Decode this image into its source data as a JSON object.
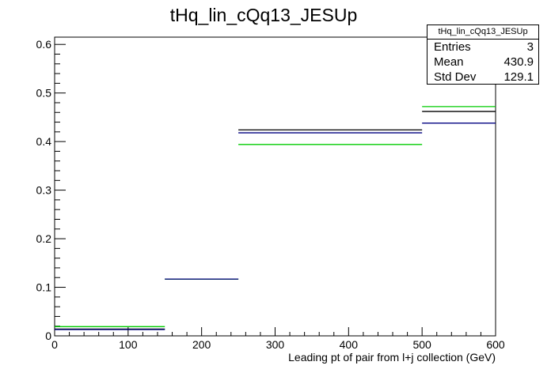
{
  "chart_data": {
    "type": "step",
    "title": "tHq_lin_cQq13_JESUp",
    "xlabel": "Leading pt of pair from l+j collection (GeV)",
    "ylabel": "",
    "xlim": [
      0,
      600
    ],
    "ylim": [
      0,
      0.615
    ],
    "x_ticks": [
      0,
      100,
      200,
      300,
      400,
      500,
      600
    ],
    "y_ticks": [
      0,
      0.1,
      0.2,
      0.3,
      0.4,
      0.5,
      0.6
    ],
    "bin_edges": [
      0,
      150,
      250,
      500,
      600
    ],
    "series": [
      {
        "color": "#000000",
        "values": [
          0.014,
          0.117,
          0.424,
          0.462
        ]
      },
      {
        "color": "#00cc00",
        "values": [
          0.019,
          0.117,
          0.394,
          0.472
        ]
      },
      {
        "color": "#000080",
        "values": [
          0.013,
          0.117,
          0.418,
          0.438
        ]
      }
    ],
    "grid": false,
    "stats_box": {
      "title": "tHq_lin_cQq13_JESUp",
      "rows": [
        {
          "label": "Entries",
          "value": "3"
        },
        {
          "label": "Mean",
          "value": "430.9"
        },
        {
          "label": "Std Dev",
          "value": "129.1"
        }
      ]
    }
  }
}
